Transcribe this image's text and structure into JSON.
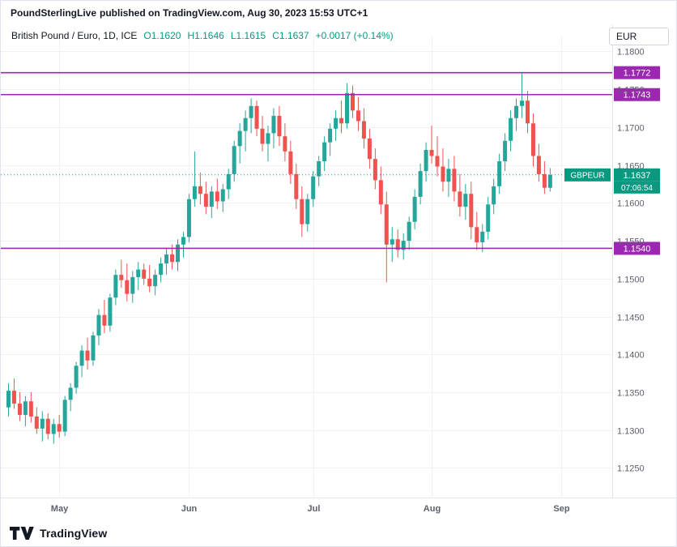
{
  "header": {
    "source": "PoundSterlingLive",
    "rest": "published on TradingView.com, Aug 30, 2023 15:53 UTC+1"
  },
  "toolbar": {
    "currency_button": "EUR"
  },
  "legend": {
    "symbol_title": "British Pound / Euro, 1D, ICE",
    "ohlc": [
      {
        "label": "O",
        "value": "1.1620"
      },
      {
        "label": "H",
        "value": "1.1646"
      },
      {
        "label": "L",
        "value": "1.1615"
      },
      {
        "label": "C",
        "value": "1.1637"
      }
    ],
    "change": "+0.0017 (+0.14%)",
    "value_color": "#089981"
  },
  "footer": {
    "brand": "TradingView"
  },
  "chart_data": {
    "type": "candlestick",
    "symbol": "GBPEUR",
    "timeframe": "1D",
    "exchange": "ICE",
    "up_color": "#26a69a",
    "down_color": "#ef5350",
    "grid": true,
    "ylim": [
      1.1212,
      1.1808
    ],
    "yticks": [
      1.125,
      1.13,
      1.135,
      1.14,
      1.145,
      1.15,
      1.155,
      1.16,
      1.165,
      1.17,
      1.175,
      1.18
    ],
    "x_ticks": [
      {
        "label": "May",
        "index": 9
      },
      {
        "label": "Jun",
        "index": 32
      },
      {
        "label": "Jul",
        "index": 54
      },
      {
        "label": "Aug",
        "index": 75
      },
      {
        "label": "Sep",
        "index": 98
      }
    ],
    "right_pad_bars": 10.5,
    "level_color": "#9c27b0",
    "levels": [
      {
        "price": 1.1772,
        "label": "1.1772"
      },
      {
        "price": 1.1743,
        "label": "1.1743"
      },
      {
        "price": 1.154,
        "label": "1.1540"
      }
    ],
    "price_line": {
      "price": 1.1637,
      "label": "1.1637",
      "countdown": "07:06:54",
      "symbol_label": "GBPEUR",
      "color": "#089981"
    },
    "candles": [
      [
        "2023-04-18",
        1.133,
        1.1362,
        1.1318,
        1.1352
      ],
      [
        "2023-04-19",
        1.1352,
        1.1368,
        1.1328,
        1.1335
      ],
      [
        "2023-04-20",
        1.1335,
        1.135,
        1.1312,
        1.132
      ],
      [
        "2023-04-21",
        1.132,
        1.1345,
        1.1305,
        1.1338
      ],
      [
        "2023-04-24",
        1.1338,
        1.135,
        1.131,
        1.1318
      ],
      [
        "2023-04-25",
        1.1318,
        1.133,
        1.1295,
        1.1302
      ],
      [
        "2023-04-26",
        1.1302,
        1.1325,
        1.1285,
        1.1315
      ],
      [
        "2023-04-27",
        1.1315,
        1.1322,
        1.1288,
        1.1295
      ],
      [
        "2023-04-28",
        1.1295,
        1.1315,
        1.1282,
        1.1308
      ],
      [
        "2023-05-01",
        1.1308,
        1.132,
        1.129,
        1.1298
      ],
      [
        "2023-05-02",
        1.1298,
        1.1345,
        1.1292,
        1.134
      ],
      [
        "2023-05-03",
        1.134,
        1.1362,
        1.1325,
        1.1356
      ],
      [
        "2023-05-04",
        1.1356,
        1.139,
        1.1348,
        1.1385
      ],
      [
        "2023-05-05",
        1.1385,
        1.1412,
        1.137,
        1.1405
      ],
      [
        "2023-05-08",
        1.1405,
        1.1422,
        1.138,
        1.1392
      ],
      [
        "2023-05-09",
        1.1392,
        1.143,
        1.1385,
        1.1425
      ],
      [
        "2023-05-10",
        1.1425,
        1.146,
        1.1412,
        1.1452
      ],
      [
        "2023-05-11",
        1.1452,
        1.1472,
        1.1428,
        1.1438
      ],
      [
        "2023-05-12",
        1.1438,
        1.148,
        1.143,
        1.1475
      ],
      [
        "2023-05-15",
        1.1475,
        1.1512,
        1.1465,
        1.1505
      ],
      [
        "2023-05-16",
        1.1505,
        1.1525,
        1.1488,
        1.1498
      ],
      [
        "2023-05-17",
        1.1498,
        1.152,
        1.147,
        1.148
      ],
      [
        "2023-05-18",
        1.148,
        1.151,
        1.1468,
        1.1502
      ],
      [
        "2023-05-19",
        1.1502,
        1.1522,
        1.1485,
        1.1512
      ],
      [
        "2023-05-22",
        1.1512,
        1.152,
        1.1492,
        1.15
      ],
      [
        "2023-05-23",
        1.15,
        1.1518,
        1.1482,
        1.149
      ],
      [
        "2023-05-24",
        1.149,
        1.1512,
        1.1478,
        1.1505
      ],
      [
        "2023-05-25",
        1.1505,
        1.1528,
        1.1495,
        1.152
      ],
      [
        "2023-05-26",
        1.152,
        1.154,
        1.1505,
        1.1532
      ],
      [
        "2023-05-29",
        1.1532,
        1.1545,
        1.1512,
        1.1522
      ],
      [
        "2023-05-30",
        1.1522,
        1.1552,
        1.151,
        1.1545
      ],
      [
        "2023-05-31",
        1.1545,
        1.1562,
        1.1528,
        1.1555
      ],
      [
        "2023-06-01",
        1.1555,
        1.1612,
        1.1548,
        1.1605
      ],
      [
        "2023-06-02",
        1.1605,
        1.1668,
        1.1595,
        1.1622
      ],
      [
        "2023-06-05",
        1.1622,
        1.164,
        1.1598,
        1.1612
      ],
      [
        "2023-06-06",
        1.1612,
        1.1628,
        1.1585,
        1.1595
      ],
      [
        "2023-06-07",
        1.1595,
        1.1622,
        1.158,
        1.1615
      ],
      [
        "2023-06-08",
        1.1615,
        1.1632,
        1.1592,
        1.1602
      ],
      [
        "2023-06-09",
        1.1602,
        1.1625,
        1.1588,
        1.1618
      ],
      [
        "2023-06-12",
        1.1618,
        1.1645,
        1.1605,
        1.1638
      ],
      [
        "2023-06-13",
        1.1638,
        1.1682,
        1.1628,
        1.1675
      ],
      [
        "2023-06-14",
        1.1675,
        1.1705,
        1.1652,
        1.1695
      ],
      [
        "2023-06-15",
        1.1695,
        1.1722,
        1.1668,
        1.1712
      ],
      [
        "2023-06-16",
        1.1712,
        1.1738,
        1.1692,
        1.1728
      ],
      [
        "2023-06-19",
        1.1728,
        1.1735,
        1.1688,
        1.1698
      ],
      [
        "2023-06-20",
        1.1698,
        1.1715,
        1.1668,
        1.1678
      ],
      [
        "2023-06-21",
        1.1678,
        1.1702,
        1.1655,
        1.1692
      ],
      [
        "2023-06-22",
        1.1692,
        1.1725,
        1.1672,
        1.1715
      ],
      [
        "2023-06-23",
        1.1715,
        1.1728,
        1.1675,
        1.1688
      ],
      [
        "2023-06-26",
        1.1688,
        1.1705,
        1.1655,
        1.1668
      ],
      [
        "2023-06-27",
        1.1668,
        1.1682,
        1.1625,
        1.1638
      ],
      [
        "2023-06-28",
        1.1638,
        1.1652,
        1.1592,
        1.1605
      ],
      [
        "2023-06-29",
        1.1605,
        1.1622,
        1.1555,
        1.1572
      ],
      [
        "2023-06-30",
        1.1572,
        1.1612,
        1.1562,
        1.1605
      ],
      [
        "2023-07-03",
        1.1605,
        1.1642,
        1.1595,
        1.1635
      ],
      [
        "2023-07-04",
        1.1635,
        1.1662,
        1.1622,
        1.1655
      ],
      [
        "2023-07-05",
        1.1655,
        1.1688,
        1.1642,
        1.168
      ],
      [
        "2023-07-06",
        1.168,
        1.1705,
        1.1662,
        1.1698
      ],
      [
        "2023-07-07",
        1.1698,
        1.1722,
        1.1682,
        1.1712
      ],
      [
        "2023-07-10",
        1.1712,
        1.1735,
        1.1692,
        1.1705
      ],
      [
        "2023-07-11",
        1.1705,
        1.1758,
        1.1698,
        1.1745
      ],
      [
        "2023-07-12",
        1.1745,
        1.1755,
        1.1712,
        1.1722
      ],
      [
        "2023-07-13",
        1.1722,
        1.174,
        1.1695,
        1.1708
      ],
      [
        "2023-07-14",
        1.1708,
        1.1725,
        1.1672,
        1.1685
      ],
      [
        "2023-07-17",
        1.1685,
        1.1698,
        1.1645,
        1.1658
      ],
      [
        "2023-07-18",
        1.1658,
        1.1672,
        1.1618,
        1.163
      ],
      [
        "2023-07-19",
        1.163,
        1.1648,
        1.1585,
        1.1598
      ],
      [
        "2023-07-20",
        1.1598,
        1.1615,
        1.1495,
        1.1545
      ],
      [
        "2023-07-21",
        1.1545,
        1.1568,
        1.1522,
        1.1552
      ],
      [
        "2023-07-24",
        1.1552,
        1.1565,
        1.1528,
        1.1538
      ],
      [
        "2023-07-25",
        1.1538,
        1.156,
        1.1525,
        1.155
      ],
      [
        "2023-07-26",
        1.155,
        1.1582,
        1.1538,
        1.1575
      ],
      [
        "2023-07-27",
        1.1575,
        1.1618,
        1.1565,
        1.1608
      ],
      [
        "2023-07-28",
        1.1608,
        1.1652,
        1.1598,
        1.1642
      ],
      [
        "2023-07-31",
        1.1642,
        1.168,
        1.1628,
        1.167
      ],
      [
        "2023-08-01",
        1.167,
        1.1702,
        1.1652,
        1.1662
      ],
      [
        "2023-08-02",
        1.1662,
        1.1688,
        1.1635,
        1.1648
      ],
      [
        "2023-08-03",
        1.1648,
        1.1672,
        1.1615,
        1.1628
      ],
      [
        "2023-08-04",
        1.1628,
        1.1658,
        1.1608,
        1.1645
      ],
      [
        "2023-08-07",
        1.1645,
        1.1662,
        1.1602,
        1.1615
      ],
      [
        "2023-08-08",
        1.1615,
        1.1638,
        1.1582,
        1.1595
      ],
      [
        "2023-08-09",
        1.1595,
        1.1625,
        1.1578,
        1.1612
      ],
      [
        "2023-08-10",
        1.1612,
        1.1628,
        1.1552,
        1.1568
      ],
      [
        "2023-08-11",
        1.1568,
        1.1588,
        1.1538,
        1.1548
      ],
      [
        "2023-08-14",
        1.1548,
        1.1572,
        1.1535,
        1.1562
      ],
      [
        "2023-08-15",
        1.1562,
        1.1608,
        1.1552,
        1.1598
      ],
      [
        "2023-08-16",
        1.1598,
        1.1632,
        1.1585,
        1.1622
      ],
      [
        "2023-08-17",
        1.1622,
        1.1665,
        1.1612,
        1.1655
      ],
      [
        "2023-08-18",
        1.1655,
        1.1692,
        1.1642,
        1.1682
      ],
      [
        "2023-08-21",
        1.1682,
        1.1722,
        1.1668,
        1.1712
      ],
      [
        "2023-08-22",
        1.1712,
        1.1738,
        1.1695,
        1.1728
      ],
      [
        "2023-08-23",
        1.1728,
        1.1772,
        1.1712,
        1.1735
      ],
      [
        "2023-08-24",
        1.1735,
        1.1748,
        1.1692,
        1.1705
      ],
      [
        "2023-08-25",
        1.1705,
        1.1718,
        1.1648,
        1.1662
      ],
      [
        "2023-08-28",
        1.1662,
        1.1678,
        1.1628,
        1.1638
      ],
      [
        "2023-08-29",
        1.1638,
        1.1655,
        1.1612,
        1.162
      ],
      [
        "2023-08-30",
        1.162,
        1.1646,
        1.1615,
        1.1637
      ]
    ]
  }
}
